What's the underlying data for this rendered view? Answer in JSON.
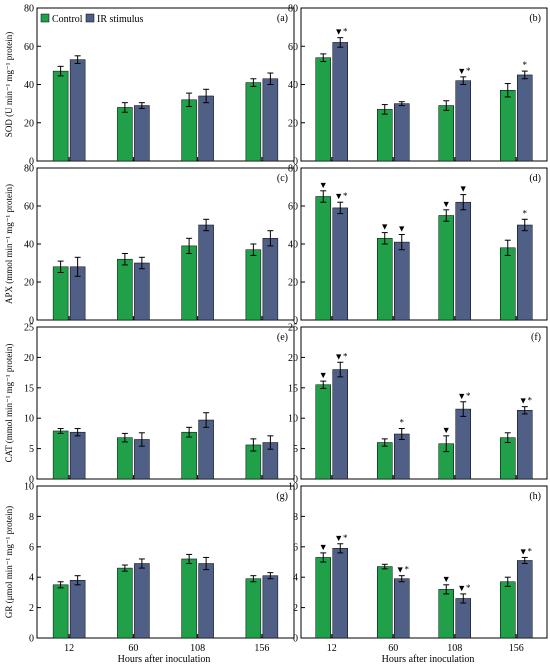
{
  "legend": {
    "control": "Control",
    "ir": "IR stimulus"
  },
  "colors": {
    "control": "#21a04a",
    "ir": "#4f5f86",
    "axis": "#000000"
  },
  "x_title": "Hours after inoculation",
  "x_categories": [
    "12",
    "60",
    "108",
    "156"
  ],
  "chart_data": [
    {
      "type": "bar",
      "panel_label": "(a)",
      "ylabel": "SOD (U min⁻¹ mg⁻¹ protein)",
      "ylim": [
        0,
        80
      ],
      "yticks": [
        0,
        20,
        40,
        60,
        80
      ],
      "categories": [
        "12",
        "60",
        "108",
        "156"
      ],
      "series": [
        {
          "name": "Control",
          "values": [
            47,
            28,
            32,
            41
          ],
          "errors": [
            2.5,
            2.5,
            3.5,
            2
          ],
          "marks": [
            "",
            "",
            "",
            ""
          ]
        },
        {
          "name": "IR stimulus",
          "values": [
            53,
            29,
            34,
            43
          ],
          "errors": [
            2,
            1.5,
            3.5,
            3
          ],
          "marks": [
            "",
            "",
            "",
            ""
          ]
        }
      ]
    },
    {
      "type": "bar",
      "panel_label": "(b)",
      "ylabel": "",
      "ylim": [
        0,
        80
      ],
      "yticks": [
        0,
        20,
        40,
        60,
        80
      ],
      "categories": [
        "12",
        "60",
        "108",
        "156"
      ],
      "series": [
        {
          "name": "Control",
          "values": [
            54,
            27,
            29,
            37
          ],
          "errors": [
            2,
            2.5,
            2.5,
            3.5
          ],
          "marks": [
            "",
            "",
            "",
            ""
          ]
        },
        {
          "name": "IR stimulus",
          "values": [
            62,
            30,
            42,
            45
          ],
          "errors": [
            2.5,
            1,
            2,
            2
          ],
          "marks": [
            "▼*",
            "",
            "▼*",
            "*"
          ]
        }
      ]
    },
    {
      "type": "bar",
      "panel_label": "(c)",
      "ylabel": "APX (mmol min⁻¹ mg⁻¹ protein)",
      "ylim": [
        0,
        80
      ],
      "yticks": [
        0,
        20,
        40,
        60,
        80
      ],
      "categories": [
        "12",
        "60",
        "108",
        "156"
      ],
      "series": [
        {
          "name": "Control",
          "values": [
            28,
            32,
            39,
            37
          ],
          "errors": [
            3,
            3,
            4,
            3
          ],
          "marks": [
            "",
            "",
            "",
            ""
          ]
        },
        {
          "name": "IR stimulus",
          "values": [
            28,
            30,
            50,
            43
          ],
          "errors": [
            5,
            3,
            3,
            4
          ],
          "marks": [
            "",
            "",
            "",
            ""
          ]
        }
      ]
    },
    {
      "type": "bar",
      "panel_label": "(d)",
      "ylabel": "",
      "ylim": [
        0,
        80
      ],
      "yticks": [
        0,
        20,
        40,
        60,
        80
      ],
      "categories": [
        "12",
        "60",
        "108",
        "156"
      ],
      "series": [
        {
          "name": "Control",
          "values": [
            65,
            43,
            55,
            38
          ],
          "errors": [
            3,
            3,
            3,
            4
          ],
          "marks": [
            "▼",
            "▼",
            "▼",
            ""
          ]
        },
        {
          "name": "IR stimulus",
          "values": [
            59,
            41,
            62,
            50
          ],
          "errors": [
            3,
            4,
            4,
            3
          ],
          "marks": [
            "▼*",
            "▼",
            "▼",
            "*"
          ]
        }
      ]
    },
    {
      "type": "bar",
      "panel_label": "(e)",
      "ylabel": "CAT (mmol min⁻¹ mg⁻¹ protein)",
      "ylim": [
        0,
        25
      ],
      "yticks": [
        0,
        5,
        10,
        15,
        20,
        25
      ],
      "categories": [
        "12",
        "60",
        "108",
        "156"
      ],
      "series": [
        {
          "name": "Control",
          "values": [
            7.9,
            6.8,
            7.7,
            5.6
          ],
          "errors": [
            0.4,
            0.7,
            0.8,
            1
          ],
          "marks": [
            "",
            "",
            "",
            ""
          ]
        },
        {
          "name": "IR stimulus",
          "values": [
            7.7,
            6.5,
            9.7,
            6.0
          ],
          "errors": [
            0.6,
            1.1,
            1.2,
            1.1
          ],
          "marks": [
            "",
            "",
            "",
            ""
          ]
        }
      ]
    },
    {
      "type": "bar",
      "panel_label": "(f)",
      "ylabel": "",
      "ylim": [
        0,
        25
      ],
      "yticks": [
        0,
        5,
        10,
        15,
        20,
        25
      ],
      "categories": [
        "12",
        "60",
        "108",
        "156"
      ],
      "series": [
        {
          "name": "Control",
          "values": [
            15.5,
            6.0,
            5.8,
            6.8
          ],
          "errors": [
            0.6,
            0.6,
            1.3,
            0.8
          ],
          "marks": [
            "▼",
            "",
            "▼",
            ""
          ]
        },
        {
          "name": "IR stimulus",
          "values": [
            18.0,
            7.4,
            11.5,
            11.3
          ],
          "errors": [
            1.2,
            0.9,
            1.2,
            0.6
          ],
          "marks": [
            "▼*",
            "*",
            "▼*",
            "▼*"
          ]
        }
      ]
    },
    {
      "type": "bar",
      "panel_label": "(g)",
      "ylabel": "GR (μmol min⁻¹ mg⁻¹ protein)",
      "ylim": [
        0,
        10
      ],
      "yticks": [
        0,
        2,
        4,
        6,
        8,
        10
      ],
      "categories": [
        "12",
        "60",
        "108",
        "156"
      ],
      "series": [
        {
          "name": "Control",
          "values": [
            3.5,
            4.6,
            5.2,
            3.9
          ],
          "errors": [
            0.2,
            0.2,
            0.3,
            0.2
          ],
          "marks": [
            "",
            "",
            "",
            ""
          ]
        },
        {
          "name": "IR stimulus",
          "values": [
            3.8,
            4.9,
            4.9,
            4.1
          ],
          "errors": [
            0.3,
            0.3,
            0.4,
            0.2
          ],
          "marks": [
            "",
            "",
            "",
            ""
          ]
        }
      ]
    },
    {
      "type": "bar",
      "panel_label": "(h)",
      "ylabel": "",
      "ylim": [
        0,
        10
      ],
      "yticks": [
        0,
        2,
        4,
        6,
        8,
        10
      ],
      "categories": [
        "12",
        "60",
        "108",
        "156"
      ],
      "series": [
        {
          "name": "Control",
          "values": [
            5.3,
            4.7,
            3.2,
            3.7
          ],
          "errors": [
            0.3,
            0.15,
            0.3,
            0.3
          ],
          "marks": [
            "▼",
            "",
            "▼",
            ""
          ]
        },
        {
          "name": "IR stimulus",
          "values": [
            5.9,
            3.9,
            2.6,
            5.1
          ],
          "errors": [
            0.3,
            0.2,
            0.3,
            0.2
          ],
          "marks": [
            "▼*",
            "▼*",
            "▼*",
            "▼*"
          ]
        }
      ]
    }
  ]
}
